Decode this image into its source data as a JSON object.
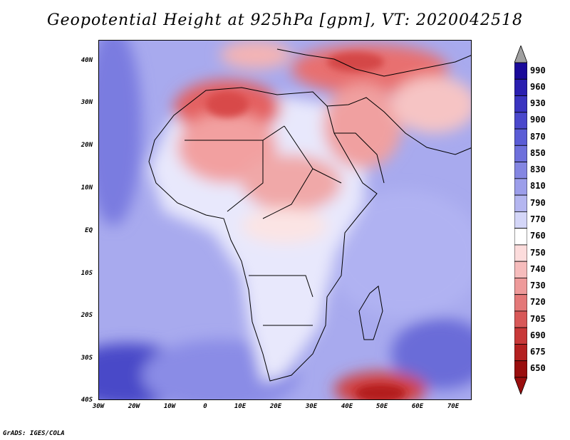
{
  "title": "Geopotential Height at 925hPa [gpm], VT: 2020042518",
  "credit": "GrADS: IGES/COLA",
  "map": {
    "y_ticks": [
      "40N",
      "30N",
      "20N",
      "10N",
      "EQ",
      "10S",
      "20S",
      "30S",
      "40S"
    ],
    "x_ticks": [
      "30W",
      "20W",
      "10W",
      "0",
      "10E",
      "20E",
      "30E",
      "40E",
      "50E",
      "60E",
      "70E"
    ]
  },
  "colorbar": {
    "labels": [
      "990",
      "960",
      "930",
      "900",
      "870",
      "850",
      "830",
      "810",
      "790",
      "770",
      "760",
      "750",
      "740",
      "730",
      "720",
      "705",
      "690",
      "675",
      "650"
    ],
    "colors": [
      "#1a0a9a",
      "#2a1fb0",
      "#3a34c0",
      "#4a48cc",
      "#5a5cd6",
      "#6e70dc",
      "#8486e2",
      "#9c9eea",
      "#b4b6f0",
      "#d4d6f8",
      "#ffffff",
      "#fcdcdc",
      "#f6bcbc",
      "#ee9a9a",
      "#e47878",
      "#d85858",
      "#c83838",
      "#b42020",
      "#9a0e0e"
    ]
  }
}
